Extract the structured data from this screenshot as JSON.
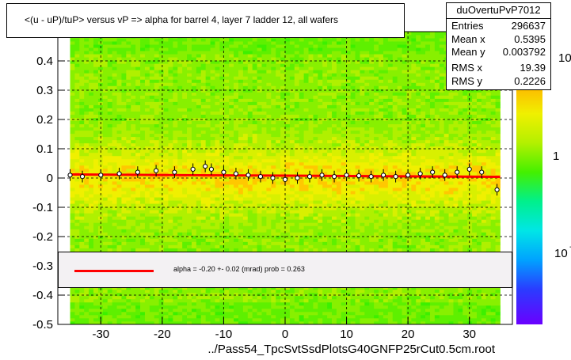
{
  "title": "<(u - uP)/tuP> versus   vP => alpha for barrel 4, layer 7 ladder 12, all wafers",
  "xlabel": "../Pass54_TpcSvtSsdPlotsG40GNFP25rCut0.5cm.root",
  "stats": {
    "name": "duOvertuPvP7012",
    "rows": [
      {
        "label": "Entries",
        "value": "296637"
      },
      {
        "label": "Mean x",
        "value": "0.5395"
      },
      {
        "label": "Mean y",
        "value": "0.003792"
      },
      {
        "label": "RMS x",
        "value": "19.39"
      },
      {
        "label": "RMS y",
        "value": "0.2226"
      }
    ]
  },
  "fit": {
    "text": "alpha =    -0.20 +-  0.02 (mrad) prob = 0.263",
    "color": "#ff0000"
  },
  "colorbar": {
    "labels": [
      "10",
      "1",
      "10"
    ],
    "superscripts": [
      "",
      "",
      "-1"
    ]
  },
  "chart_data": {
    "type": "heatmap",
    "title": "<(u - uP)/tuP> versus   vP => alpha for barrel 4, layer 7 ladder 12, all wafers",
    "xlabel": "../Pass54_TpcSvtSsdPlotsG40GNFP25rCut0.5cm.root",
    "ylabel": "",
    "xlim": [
      -37,
      37
    ],
    "ylim": [
      -0.5,
      0.5
    ],
    "xticks": [
      -30,
      -20,
      -10,
      0,
      10,
      20,
      30
    ],
    "yticks": [
      -0.5,
      -0.4,
      -0.3,
      -0.2,
      -0.1,
      0,
      0.1,
      0.2,
      0.3,
      0.4,
      0.5
    ],
    "ytick_labels": [
      "-0.5",
      "-0.4",
      "-0.3",
      "-0.2",
      "-0.1",
      "0",
      "0.1",
      "0.2",
      "0.3",
      "0.4",
      "0.5"
    ],
    "grid": true,
    "z_scale": "log",
    "data_x_range": [
      -35,
      35
    ],
    "profile": {
      "x": [
        -35,
        -33,
        -30,
        -27,
        -24,
        -21,
        -18,
        -15,
        -13,
        -12,
        -10,
        -8,
        -6,
        -4,
        -2,
        0,
        2,
        4,
        6,
        8,
        10,
        12,
        14,
        16,
        18,
        20,
        22,
        24,
        26,
        28,
        30,
        32,
        34.5
      ],
      "y": [
        0.01,
        0.005,
        0.01,
        0.015,
        0.02,
        0.025,
        0.02,
        0.03,
        0.04,
        0.03,
        0.02,
        0.015,
        0.01,
        0.005,
        0.0,
        -0.005,
        0.0,
        0.005,
        0.01,
        0.005,
        0.01,
        0.008,
        0.005,
        0.01,
        0.005,
        0.01,
        0.015,
        0.02,
        0.01,
        0.02,
        0.03,
        0.02,
        -0.04
      ]
    },
    "fit_line": {
      "x": [
        -35,
        35
      ],
      "y": [
        0.012,
        0.004
      ],
      "color": "#ff0000"
    }
  }
}
